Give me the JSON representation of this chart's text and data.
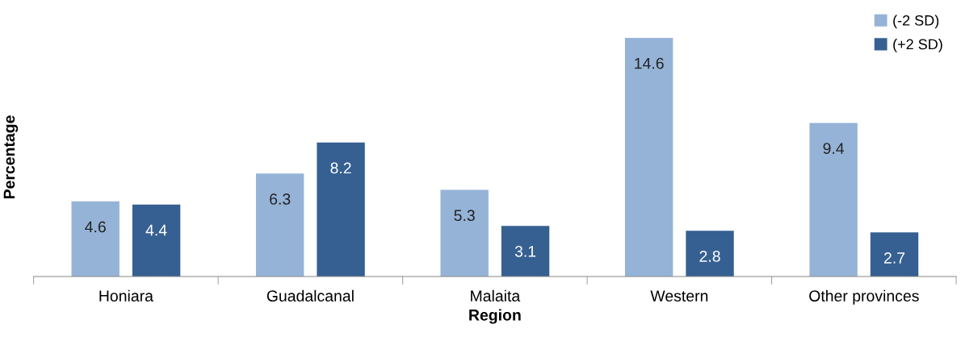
{
  "chart_data": {
    "type": "bar",
    "xlabel": "Region",
    "ylabel": "Percentage",
    "categories": [
      "Honiara",
      "Guadalcanal",
      "Malaita",
      "Western",
      "Other provinces"
    ],
    "series": [
      {
        "name": "(-2 SD)",
        "color": "#95b3d7",
        "values": [
          4.6,
          6.3,
          5.3,
          14.6,
          9.4
        ]
      },
      {
        "name": "(+2 SD)",
        "color": "#366092",
        "values": [
          4.4,
          8.2,
          3.1,
          2.8,
          2.7
        ]
      }
    ],
    "data_labels": true,
    "legend": "top right",
    "grid": false,
    "tick_labels": "x"
  }
}
